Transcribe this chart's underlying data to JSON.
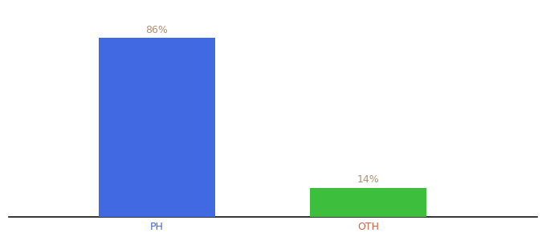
{
  "categories": [
    "PH",
    "OTH"
  ],
  "values": [
    86,
    14
  ],
  "bar_colors": [
    "#4169e1",
    "#3dbf3d"
  ],
  "label_texts": [
    "86%",
    "14%"
  ],
  "label_color": "#b09070",
  "tick_color_ph": "#4169e1",
  "tick_color_oth": "#cc6644",
  "ylim": [
    0,
    100
  ],
  "background_color": "#ffffff",
  "bar_width": 0.55,
  "label_fontsize": 9,
  "tick_fontsize": 9,
  "x_positions": [
    1,
    2
  ],
  "xlim": [
    0.3,
    2.8
  ]
}
